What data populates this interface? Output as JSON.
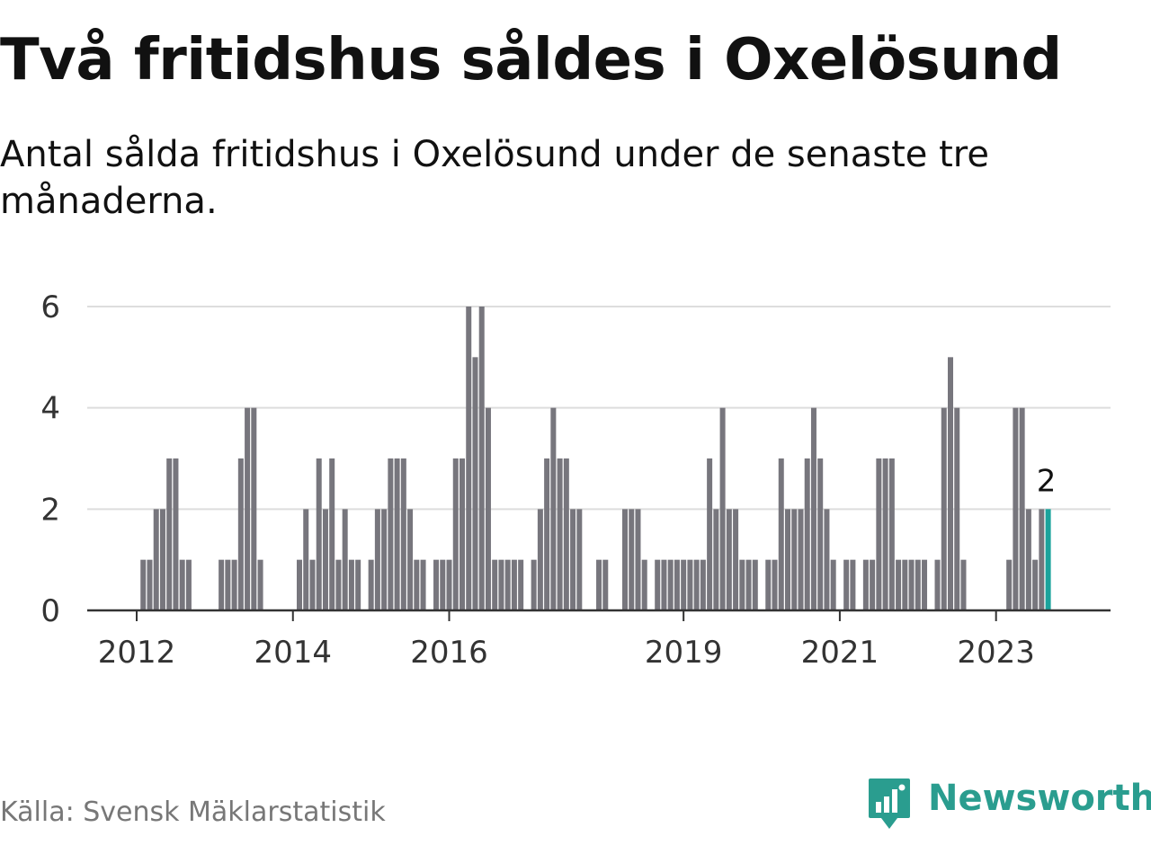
{
  "title": "Två fritidshus såldes i Oxelösund",
  "subtitle": "Antal sålda fritidshus i Oxelösund under de senaste tre månaderna.",
  "source": "Källa: Svensk Mäklarstatistik",
  "logo": {
    "text": "Newsworthy",
    "icon": "bar-chart-speech-bubble-icon"
  },
  "colors": {
    "bar": "#77767d",
    "highlight": "#1ba39c",
    "grid": "#dddddd",
    "axis": "#333333",
    "brand": "#2a9d8f"
  },
  "chart_data": {
    "type": "bar",
    "title": "Två fritidshus såldes i Oxelösund",
    "xlabel": "",
    "ylabel": "",
    "ylim": [
      0,
      6
    ],
    "y_ticks": [
      "0",
      "2",
      "4",
      "6"
    ],
    "x_ticks": [
      {
        "label": "2012",
        "index": 0
      },
      {
        "label": "2014",
        "index": 24
      },
      {
        "label": "2016",
        "index": 48
      },
      {
        "label": "2019",
        "index": 84
      },
      {
        "label": "2021",
        "index": 108
      },
      {
        "label": "2023",
        "index": 132
      }
    ],
    "start": "2012-01",
    "interval": "month",
    "values": [
      0,
      1,
      1,
      2,
      2,
      3,
      3,
      1,
      1,
      0,
      0,
      0,
      0,
      1,
      1,
      1,
      3,
      4,
      4,
      1,
      0,
      0,
      0,
      0,
      0,
      1,
      2,
      1,
      3,
      2,
      3,
      1,
      2,
      1,
      1,
      0,
      1,
      2,
      2,
      3,
      3,
      3,
      2,
      1,
      1,
      0,
      1,
      1,
      1,
      3,
      3,
      6,
      5,
      6,
      4,
      1,
      1,
      1,
      1,
      1,
      0,
      1,
      2,
      3,
      4,
      3,
      3,
      2,
      2,
      0,
      0,
      1,
      1,
      0,
      0,
      2,
      2,
      2,
      1,
      0,
      1,
      1,
      1,
      1,
      1,
      1,
      1,
      1,
      3,
      2,
      4,
      2,
      2,
      1,
      1,
      1,
      0,
      1,
      1,
      3,
      2,
      2,
      2,
      3,
      4,
      3,
      2,
      1,
      0,
      1,
      1,
      0,
      1,
      1,
      3,
      3,
      3,
      1,
      1,
      1,
      1,
      1,
      0,
      1,
      4,
      5,
      4,
      1,
      0,
      0,
      0,
      0,
      0,
      0,
      1,
      4,
      4,
      2,
      1,
      2,
      2
    ],
    "highlight_index": 140,
    "data_labels": [
      {
        "index": 140,
        "text": "2"
      }
    ],
    "grid": true
  }
}
